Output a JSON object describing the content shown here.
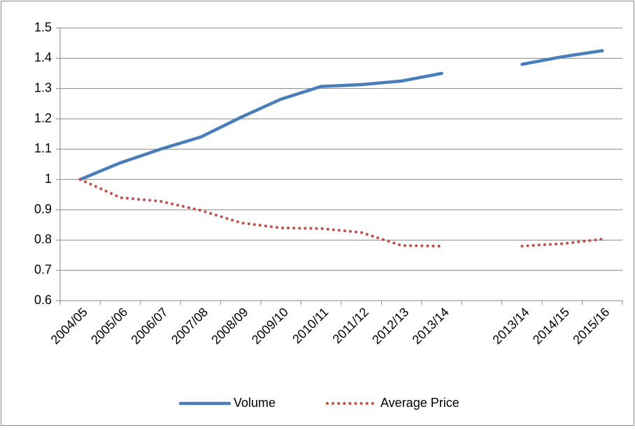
{
  "chart_data": {
    "type": "line",
    "categories": [
      "2004/05",
      "2005/06",
      "2006/07",
      "2007/08",
      "2008/09",
      "2009/10",
      "2010/11",
      "2011/12",
      "2012/13",
      "2013/14",
      null,
      "2013/14",
      "2014/15",
      "2015/16"
    ],
    "series": [
      {
        "name": "Volume",
        "color": "#4a7ebb",
        "style": "solid",
        "values": [
          1.0,
          1.055,
          1.1,
          1.14,
          1.205,
          1.265,
          1.307,
          1.313,
          1.325,
          1.35,
          null,
          1.38,
          1.405,
          1.425
        ]
      },
      {
        "name": "Average Price",
        "color": "#c0504d",
        "style": "dotted",
        "values": [
          1.0,
          0.94,
          0.928,
          0.898,
          0.857,
          0.84,
          0.838,
          0.825,
          0.782,
          0.78,
          null,
          0.78,
          0.788,
          0.803
        ]
      }
    ],
    "ylim": [
      0.6,
      1.5
    ],
    "yticks": [
      0.6,
      0.7,
      0.8,
      0.9,
      1,
      1.1,
      1.2,
      1.3,
      1.4,
      1.5
    ],
    "grid": true,
    "legend": "bottom"
  }
}
